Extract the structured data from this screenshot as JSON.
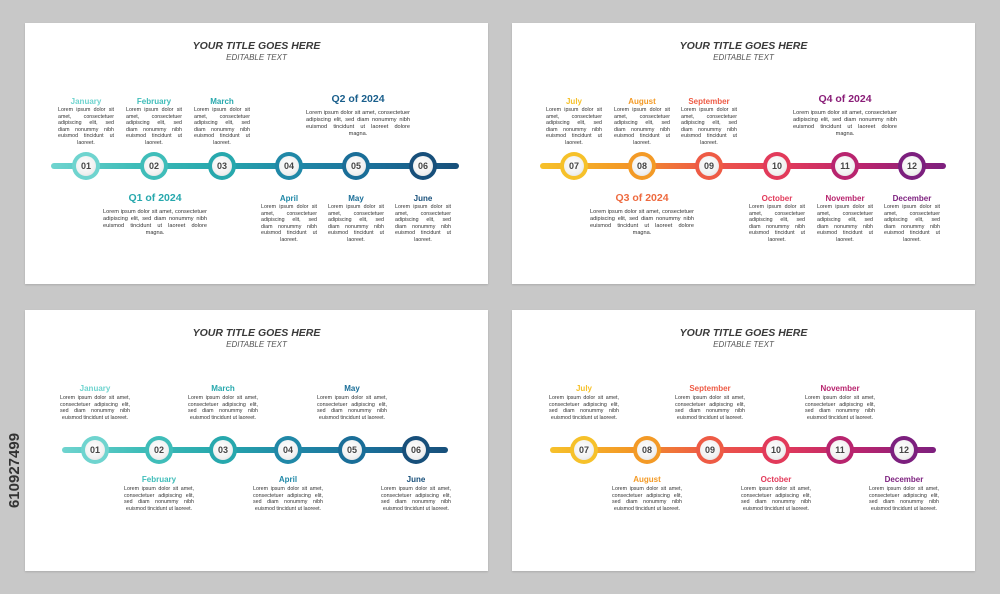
{
  "title": "YOUR TITLE GOES HERE",
  "subtitle": "EDITABLE TEXT",
  "body_text": "Lorem ipsum dolor sit amet, consectetuer adipiscing elit, sed diam nonummy nibh euismod tincidunt ut laoreet.",
  "quarter_text": "Lorem ipsum dolor sit amet, consectetuer adipiscing elit, sed diam nonummy nibh euismod tincidunt ut laoreet dolore magna.",
  "watermark_id": "610927499",
  "slides": [
    {
      "id": "s1",
      "nodes": [
        {
          "num": "01",
          "color": "#6fd4cf",
          "month": "January"
        },
        {
          "num": "02",
          "color": "#3fbdb9",
          "month": "February"
        },
        {
          "num": "03",
          "color": "#27a8ad",
          "month": "March"
        },
        {
          "num": "04",
          "color": "#2088a7",
          "month": "April"
        },
        {
          "num": "05",
          "color": "#1a6e98",
          "month": "May"
        },
        {
          "num": "06",
          "color": "#174f7a",
          "month": "June"
        }
      ],
      "quarters": [
        {
          "label": "Q1 of 2024",
          "color": "#27a8ad"
        },
        {
          "label": "Q2 of 2024",
          "color": "#1a5f8c"
        }
      ]
    },
    {
      "id": "s2",
      "nodes": [
        {
          "num": "07",
          "color": "#f6c12a",
          "month": "July"
        },
        {
          "num": "08",
          "color": "#f39a26",
          "month": "August"
        },
        {
          "num": "09",
          "color": "#ee5b45",
          "month": "September"
        },
        {
          "num": "10",
          "color": "#e23a5a",
          "month": "October"
        },
        {
          "num": "11",
          "color": "#b8246e",
          "month": "November"
        },
        {
          "num": "12",
          "color": "#7c1f7e",
          "month": "December"
        }
      ],
      "quarters": [
        {
          "label": "Q3 of 2024",
          "color": "#ee6a3f"
        },
        {
          "label": "Q4 of 2024",
          "color": "#8a1e78"
        }
      ]
    },
    {
      "id": "s3",
      "nodes": [
        {
          "num": "01",
          "color": "#6fd4cf",
          "month": "January"
        },
        {
          "num": "02",
          "color": "#3fbdb9",
          "month": "February"
        },
        {
          "num": "03",
          "color": "#27a8ad",
          "month": "March"
        },
        {
          "num": "04",
          "color": "#2088a7",
          "month": "April"
        },
        {
          "num": "05",
          "color": "#1a6e98",
          "month": "May"
        },
        {
          "num": "06",
          "color": "#174f7a",
          "month": "June"
        }
      ]
    },
    {
      "id": "s4",
      "nodes": [
        {
          "num": "07",
          "color": "#f6c12a",
          "month": "July"
        },
        {
          "num": "08",
          "color": "#f39a26",
          "month": "August"
        },
        {
          "num": "09",
          "color": "#ee5b45",
          "month": "September"
        },
        {
          "num": "10",
          "color": "#e23a5a",
          "month": "October"
        },
        {
          "num": "11",
          "color": "#b8246e",
          "month": "November"
        },
        {
          "num": "12",
          "color": "#7c1f7e",
          "month": "December"
        }
      ]
    }
  ]
}
